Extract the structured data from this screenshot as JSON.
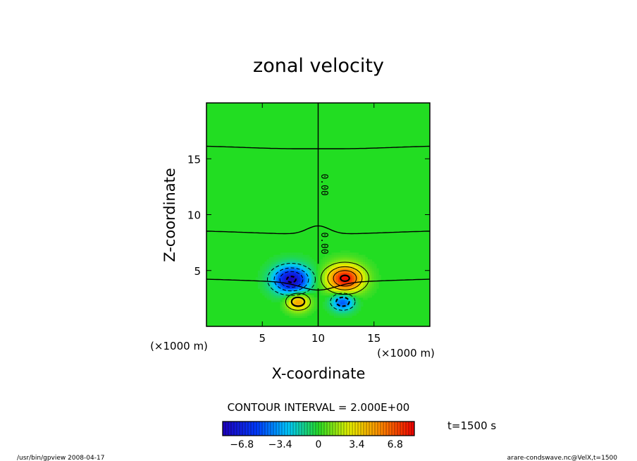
{
  "chart_data": {
    "type": "heatmap",
    "title": "zonal velocity",
    "xlabel": "X-coordinate",
    "ylabel": "Z-coordinate",
    "xunit_label": "(×1000 m)",
    "yunit_label": "(×1000 m)",
    "xlim": [
      0,
      20
    ],
    "ylim": [
      0,
      20
    ],
    "xticks": [
      "5",
      "10",
      "15"
    ],
    "yticks": [
      "5",
      "10",
      "15"
    ],
    "xtick_values": [
      5,
      10,
      15
    ],
    "ytick_values": [
      5,
      10,
      15
    ],
    "contour_interval_text": "CONTOUR INTERVAL = 2.000E+00",
    "contour_label": "0.00",
    "time_label": "t=1500 s",
    "colorbar": {
      "range": [
        -8.5,
        8.5
      ],
      "ticks": [
        "−6.8",
        "−3.4",
        "0",
        "3.4",
        "6.8"
      ],
      "tick_values": [
        -6.8,
        -3.4,
        0,
        3.4,
        6.8
      ]
    },
    "anomalies": [
      {
        "x": 7.6,
        "z": 4.2,
        "value": -8.4,
        "sx": 1.1,
        "sz": 0.85
      },
      {
        "x": 12.4,
        "z": 4.3,
        "value": 8.4,
        "sx": 1.1,
        "sz": 0.85
      },
      {
        "x": 8.2,
        "z": 2.2,
        "value": 5.2,
        "sx": 0.7,
        "sz": 0.55
      },
      {
        "x": 12.2,
        "z": 2.2,
        "value": -5.2,
        "sx": 0.7,
        "sz": 0.55
      }
    ],
    "zero_contours_z": [
      16.0,
      8.4,
      4.1
    ]
  },
  "footer": {
    "left": "/usr/bin/gpview   2008-04-17",
    "right": "arare-condswave.nc@VelX,t=1500"
  },
  "colors": {
    "background_field": "#22dd22",
    "negative": "#0000ff",
    "positive": "#ff2200"
  }
}
